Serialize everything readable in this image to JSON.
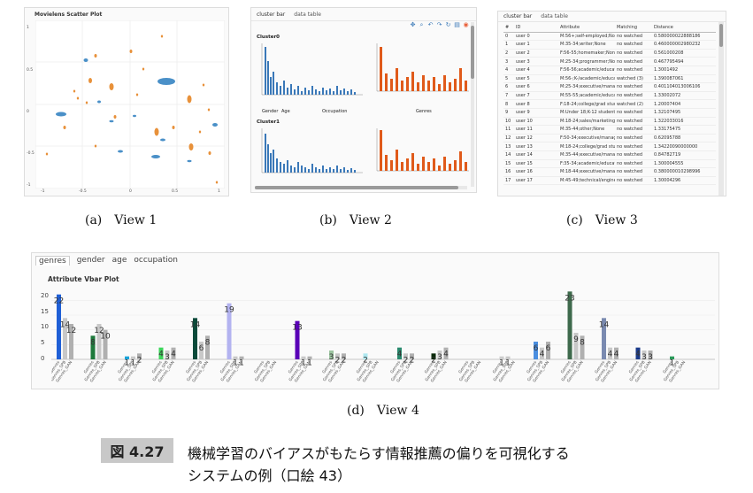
{
  "view1": {
    "title": "Movielens Scatter Plot",
    "caption": "(a) View 1",
    "yticks": [
      "1",
      "0.5",
      "0",
      "-0.5",
      "-1"
    ],
    "xticks": [
      "-1",
      "-0.5",
      "0",
      "0.5",
      "1"
    ]
  },
  "view2": {
    "tabs": [
      "cluster bar",
      "data table"
    ],
    "cluster0": "Cluster0",
    "cluster1": "Cluster1",
    "label_gender": "Gender",
    "label_age": "Age",
    "label_occupation": "Occupation",
    "label_genres": "Genres",
    "caption": "(b) View 2",
    "tool_icons": [
      "move-icon",
      "zoom-icon",
      "undo-icon",
      "redo-icon",
      "reset-icon",
      "save-icon",
      "bokeh-logo-icon"
    ]
  },
  "view3": {
    "tabs": [
      "cluster bar",
      "data table"
    ],
    "columns": [
      "#",
      "ID",
      "Attribute",
      "Matching",
      "Distance"
    ],
    "rows": [
      [
        "0",
        "user 0",
        "M:56+;self-employed;None",
        "no watched",
        "0.580000022888186"
      ],
      [
        "1",
        "user 1",
        "M:35-34;writer;None",
        "no watched",
        "0.460000002980232"
      ],
      [
        "2",
        "user 2",
        "F:56-55;homemaker;None",
        "no watched",
        "0.561000208"
      ],
      [
        "3",
        "user 3",
        "M:25-34;programmer;None",
        "no watched",
        "0.467795494"
      ],
      [
        "4",
        "user 4",
        "F:56-56;academic/educator",
        "no watched",
        "1.3001492"
      ],
      [
        "5",
        "user 5",
        "M:56-;K-/academic/educator",
        "watched (3)",
        "1.390087061"
      ],
      [
        "6",
        "user 6",
        "M:25-34;executive/manageri",
        "no watched",
        "0.401104013006106"
      ],
      [
        "7",
        "user 7",
        "M:55-55;academic/educator",
        "no watched",
        "1.33002072"
      ],
      [
        "8",
        "user 8",
        "F:18-24;college/grad student",
        "watched (2)",
        "1.20007404"
      ],
      [
        "9",
        "user 9",
        "M:Under 18;K-12 student;No",
        "no watched",
        "1.32107495"
      ],
      [
        "10",
        "user 10",
        "M:18-24;sales/marketing",
        "no watched",
        "1.322033016"
      ],
      [
        "11",
        "user 11",
        "M:35-44;other;None",
        "no watched",
        "1.33175475"
      ],
      [
        "12",
        "user 12",
        "F:50-34;executive/manageri",
        "no watched",
        "0.62095788"
      ],
      [
        "13",
        "user 13",
        "M:18-24;college/grad student",
        "no watched",
        "1.34220090000000"
      ],
      [
        "14",
        "user 14",
        "M:35-44;executive/manageri",
        "no watched",
        "0.84782719"
      ],
      [
        "15",
        "user 15",
        "F:35-34;academic/educator",
        "no watched",
        "1.300004555"
      ],
      [
        "16",
        "user 16",
        "M:18-44;executive/manageri",
        "no watched",
        "0.380000010298996"
      ],
      [
        "17",
        "user 17",
        "M:45-49;technical/engineer",
        "no watched",
        "1.30004296"
      ]
    ],
    "caption": "(c) View 3"
  },
  "view4": {
    "tabs": [
      "genres",
      "gender",
      "age",
      "occupation"
    ],
    "active_tab": "genres",
    "title": "Attribute Vbar Plot",
    "yticks": [
      "20",
      "15",
      "10",
      "5",
      "0"
    ],
    "caption": "(d) View 4",
    "series_labels": [
      "Genres",
      "Genres_SPB",
      "Genres_GAN"
    ]
  },
  "footer": {
    "badge": "図 4.27",
    "line1": "機械学習のバイアスがもたらす情報推薦の偏りを可視化する",
    "line2": "システムの例（口絵 43）"
  },
  "chart_data": {
    "type": "bar",
    "title": "Attribute Vbar Plot",
    "ylim": [
      0,
      24
    ],
    "series_names": [
      "Genres",
      "Genres_SPB",
      "Genres_GAN"
    ],
    "groups": [
      {
        "color": "#1f5fd6",
        "values": [
          22,
          14,
          12
        ]
      },
      {
        "color": "#1e7a3c",
        "values": [
          8,
          12,
          10
        ]
      },
      {
        "color": "#1aa3d9",
        "values": [
          1,
          1,
          2
        ]
      },
      {
        "color": "#3cd65a",
        "values": [
          4,
          3,
          4
        ]
      },
      {
        "color": "#0b4a3a",
        "values": [
          14,
          6,
          8
        ]
      },
      {
        "color": "#b3b3f0",
        "values": [
          19,
          1,
          1
        ]
      },
      {
        "color": "#f2f2f2",
        "values": [
          0,
          0,
          0
        ]
      },
      {
        "color": "#5a00b8",
        "values": [
          13,
          1,
          1
        ]
      },
      {
        "color": "#9cc4a0",
        "values": [
          3,
          2,
          2
        ]
      },
      {
        "color": "#aee8f0",
        "values": [
          2,
          0,
          0
        ]
      },
      {
        "color": "#2a8a6e",
        "values": [
          4,
          2,
          2
        ]
      },
      {
        "color": "#0a2a0a",
        "values": [
          2,
          3,
          4
        ]
      },
      {
        "color": "#e8e8e8",
        "values": [
          0,
          0,
          0
        ]
      },
      {
        "color": "#cccccc",
        "values": [
          1,
          1,
          0
        ]
      },
      {
        "color": "#4a8ee0",
        "values": [
          6,
          4,
          6
        ]
      },
      {
        "color": "#3e6a4c",
        "values": [
          23,
          9,
          8
        ]
      },
      {
        "color": "#7a8ab0",
        "values": [
          14,
          4,
          4
        ]
      },
      {
        "color": "#1a3a8a",
        "values": [
          4,
          3,
          3
        ]
      },
      {
        "color": "#2a9a5a",
        "values": [
          1,
          0,
          0
        ]
      }
    ]
  }
}
